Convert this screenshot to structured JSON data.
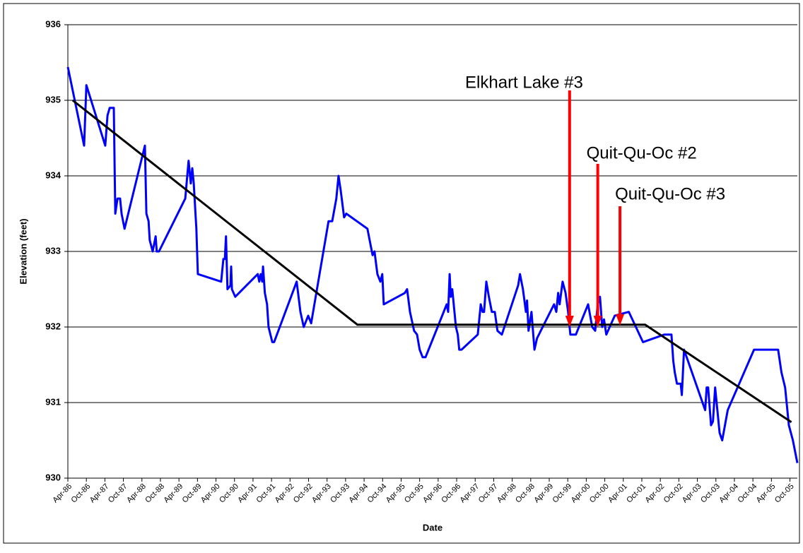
{
  "chart_data": {
    "type": "line",
    "xlabel": "Date",
    "ylabel": "Elevation (feet)",
    "xlim": [
      1986.25,
      2005.95
    ],
    "ylim": [
      930,
      936
    ],
    "yticks": [
      930,
      931,
      932,
      933,
      934,
      935,
      936
    ],
    "xticks": [
      {
        "value": 1986.25,
        "label": "Apr-86"
      },
      {
        "value": 1986.75,
        "label": "Oct-86"
      },
      {
        "value": 1987.25,
        "label": "Apr-87"
      },
      {
        "value": 1987.75,
        "label": "Oct-87"
      },
      {
        "value": 1988.25,
        "label": "Apr-88"
      },
      {
        "value": 1988.75,
        "label": "Oct-88"
      },
      {
        "value": 1989.25,
        "label": "Apr-89"
      },
      {
        "value": 1989.75,
        "label": "Oct-89"
      },
      {
        "value": 1990.25,
        "label": "Apr-90"
      },
      {
        "value": 1990.75,
        "label": "Oct-90"
      },
      {
        "value": 1991.25,
        "label": "Apr-91"
      },
      {
        "value": 1991.75,
        "label": "Oct-91"
      },
      {
        "value": 1992.25,
        "label": "Apr-92"
      },
      {
        "value": 1992.75,
        "label": "Oct-92"
      },
      {
        "value": 1993.25,
        "label": "Apr-93"
      },
      {
        "value": 1993.75,
        "label": "Oct-93"
      },
      {
        "value": 1994.25,
        "label": "Apr-94"
      },
      {
        "value": 1994.75,
        "label": "Oct-94"
      },
      {
        "value": 1995.25,
        "label": "Apr-95"
      },
      {
        "value": 1995.75,
        "label": "Oct-95"
      },
      {
        "value": 1996.25,
        "label": "Apr-96"
      },
      {
        "value": 1996.75,
        "label": "Oct-96"
      },
      {
        "value": 1997.25,
        "label": "Apr-97"
      },
      {
        "value": 1997.75,
        "label": "Oct-97"
      },
      {
        "value": 1998.25,
        "label": "Apr-98"
      },
      {
        "value": 1998.75,
        "label": "Oct-98"
      },
      {
        "value": 1999.25,
        "label": "Apr-99"
      },
      {
        "value": 1999.75,
        "label": "Oct-99"
      },
      {
        "value": 2000.25,
        "label": "Apr-00"
      },
      {
        "value": 2000.75,
        "label": "Oct-00"
      },
      {
        "value": 2001.25,
        "label": "Apr-01"
      },
      {
        "value": 2001.75,
        "label": "Oct-01"
      },
      {
        "value": 2002.25,
        "label": "Apr-02"
      },
      {
        "value": 2002.75,
        "label": "Oct-02"
      },
      {
        "value": 2003.25,
        "label": "Apr-03"
      },
      {
        "value": 2003.75,
        "label": "Oct-03"
      },
      {
        "value": 2004.25,
        "label": "Apr-04"
      },
      {
        "value": 2004.75,
        "label": "Oct-04"
      },
      {
        "value": 2005.25,
        "label": "Apr-05"
      },
      {
        "value": 2005.75,
        "label": "Oct-05"
      }
    ],
    "grid": true,
    "series": [
      {
        "color": "#0000ff",
        "x": [
          1986.25,
          1986.69,
          1986.75,
          1987.26,
          1987.32,
          1987.38,
          1987.49,
          1987.53,
          1987.59,
          1987.66,
          1987.7,
          1987.78,
          1988.33,
          1988.37,
          1988.43,
          1988.46,
          1988.54,
          1988.62,
          1988.65,
          1988.71,
          1989.42,
          1989.51,
          1989.57,
          1989.61,
          1989.65,
          1989.72,
          1989.76,
          1990.39,
          1990.45,
          1990.49,
          1990.52,
          1990.56,
          1990.64,
          1990.66,
          1990.68,
          1990.77,
          1991.38,
          1991.42,
          1991.46,
          1991.5,
          1991.52,
          1991.57,
          1991.63,
          1991.67,
          1991.77,
          1991.82,
          1992.43,
          1992.53,
          1992.62,
          1992.74,
          1992.82,
          1993.29,
          1993.39,
          1993.5,
          1993.56,
          1993.62,
          1993.71,
          1993.77,
          1994.34,
          1994.44,
          1994.48,
          1994.53,
          1994.61,
          1994.69,
          1994.74,
          1994.78,
          1995.35,
          1995.41,
          1995.49,
          1995.6,
          1995.68,
          1995.75,
          1995.83,
          1995.91,
          1996.4,
          1996.48,
          1996.52,
          1996.56,
          1996.59,
          1996.63,
          1996.73,
          1996.78,
          1996.82,
          1996.88,
          1997.32,
          1997.4,
          1997.45,
          1997.49,
          1997.55,
          1997.62,
          1997.7,
          1997.78,
          1997.85,
          1997.97,
          1998.41,
          1998.46,
          1998.54,
          1998.62,
          1998.65,
          1998.69,
          1998.77,
          1998.85,
          1998.92,
          1999.38,
          1999.44,
          1999.49,
          1999.53,
          1999.61,
          1999.69,
          1999.76,
          1999.82,
          1999.97,
          2000.3,
          2000.41,
          2000.49,
          2000.56,
          2000.62,
          2000.68,
          2000.73,
          2000.79,
          2001.02,
          2001.4,
          2001.78,
          2002.36,
          2002.55,
          2002.6,
          2002.64,
          2002.7,
          2002.8,
          2002.83,
          2002.89,
          2003.46,
          2003.5,
          2003.54,
          2003.62,
          2003.67,
          2003.73,
          2003.85,
          2003.92,
          2004.07,
          2004.78,
          2005.43,
          2005.52,
          2005.62,
          2005.72,
          2005.83,
          2005.95
        ],
        "values": [
          935.44,
          934.4,
          935.2,
          934.4,
          934.8,
          934.9,
          934.9,
          933.5,
          933.7,
          933.7,
          933.5,
          933.3,
          934.4,
          933.5,
          933.4,
          933.15,
          933.0,
          933.2,
          933.0,
          933.0,
          933.7,
          934.2,
          933.9,
          934.1,
          933.9,
          933.3,
          932.7,
          932.6,
          932.9,
          932.9,
          933.2,
          932.5,
          932.55,
          932.8,
          932.5,
          932.4,
          932.7,
          932.6,
          932.7,
          932.6,
          932.8,
          932.45,
          932.3,
          932.0,
          931.8,
          931.8,
          932.6,
          932.2,
          932.0,
          932.15,
          932.05,
          933.4,
          933.4,
          933.7,
          934.0,
          933.8,
          933.45,
          933.5,
          933.3,
          933.05,
          932.95,
          933.0,
          932.7,
          932.6,
          932.7,
          932.3,
          932.45,
          932.5,
          932.2,
          931.95,
          931.9,
          931.7,
          931.6,
          931.6,
          932.2,
          932.3,
          932.2,
          932.7,
          932.4,
          932.5,
          932.0,
          931.9,
          931.7,
          931.7,
          931.9,
          932.3,
          932.2,
          932.2,
          932.6,
          932.4,
          932.2,
          932.2,
          931.95,
          931.9,
          932.55,
          932.7,
          932.5,
          932.2,
          932.35,
          931.95,
          932.2,
          931.7,
          931.85,
          932.3,
          932.2,
          932.45,
          932.3,
          932.6,
          932.45,
          932.2,
          931.9,
          931.9,
          932.3,
          932.0,
          931.95,
          932.3,
          932.4,
          932.0,
          932.1,
          931.9,
          932.15,
          932.2,
          931.8,
          931.9,
          931.9,
          931.55,
          931.4,
          931.25,
          931.25,
          931.1,
          931.7,
          930.9,
          931.2,
          931.2,
          930.7,
          930.75,
          931.2,
          930.6,
          930.5,
          930.9,
          931.7,
          931.7,
          931.4,
          931.2,
          930.7,
          930.5,
          930.2
        ]
      },
      {
        "color": "#000000",
        "x": [
          1986.38,
          1994.07,
          2001.84,
          2005.79
        ],
        "values": [
          935.0,
          932.03,
          932.03,
          930.74
        ]
      }
    ],
    "annotations": [
      {
        "text": "Elkhart Lake #3",
        "x": 1999.8,
        "y": 932.0,
        "color": "#ff0000"
      },
      {
        "text": "Quit-Qu-Oc #2",
        "x": 2000.56,
        "y": 932.0,
        "color": "#ff0000"
      },
      {
        "text": "Quit-Qu-Oc #3",
        "x": 2001.16,
        "y": 932.02,
        "color": "#ff0000"
      }
    ]
  }
}
